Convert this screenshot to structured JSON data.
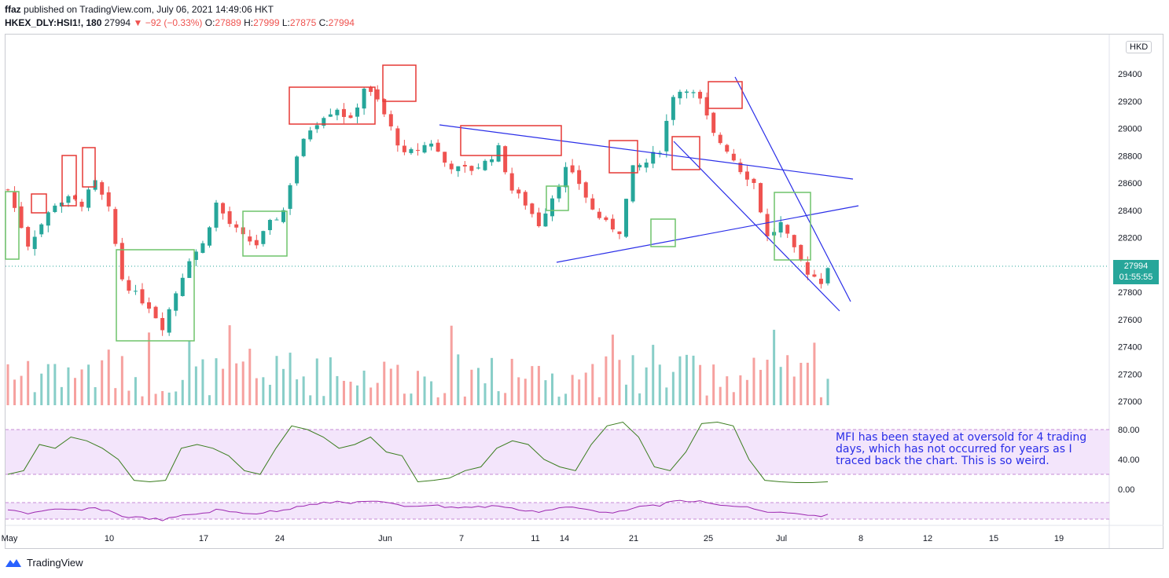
{
  "header": {
    "published_by": "ffaz",
    "published_text": "published on TradingView.com, July 06, 2021 14:49:06 HKT",
    "symbol": "HKEX_DLY:HSI1!, 180",
    "last": "27994",
    "change": "−92 (−0.33%)",
    "o_label": "O:",
    "o_value": "27889",
    "h_label": "H:",
    "h_value": "27999",
    "l_label": "L:",
    "l_value": "27875",
    "c_label": "C:",
    "c_value": "27994"
  },
  "currency": "HKD",
  "price_tag": {
    "price": "27994",
    "countdown": "01:55:55"
  },
  "annotation": "MFI has been stayed at oversold for 4 trading days, which has not occurred for years as I traced back the chart. This is so weird.",
  "footer": {
    "brand": "TradingView"
  },
  "colors": {
    "up": "#26a69a",
    "down": "#ef5350",
    "trendline": "#2a2ee8",
    "mfi_line": "#3a7d1e",
    "mfi_band": "#f3e5fb",
    "osc_line": "#9c27b0"
  },
  "chart_data": [
    {
      "type": "candlestick",
      "x_ticks": [
        "May",
        "10",
        "17",
        "24",
        "Jun",
        "7",
        "11",
        "14",
        "21",
        "25",
        "Jul",
        "8",
        "12",
        "15",
        "19"
      ],
      "y_ticks": [
        29400,
        29200,
        29000,
        28800,
        28600,
        28400,
        28200,
        27800,
        27600,
        27400,
        27200,
        27000
      ],
      "ylim": [
        27000,
        29600
      ],
      "last_price": 27994,
      "path_points": [
        [
          0,
          28550
        ],
        [
          3,
          28150
        ],
        [
          5,
          28300
        ],
        [
          7,
          28450
        ],
        [
          9,
          28480
        ],
        [
          11,
          28450
        ],
        [
          13,
          28600
        ],
        [
          15,
          28400
        ],
        [
          17,
          27900
        ],
        [
          19,
          27780
        ],
        [
          21,
          27700
        ],
        [
          23,
          27550
        ],
        [
          25,
          27800
        ],
        [
          27,
          28050
        ],
        [
          29,
          28150
        ],
        [
          31,
          28450
        ],
        [
          33,
          28300
        ],
        [
          35,
          28200
        ],
        [
          37,
          28150
        ],
        [
          39,
          28300
        ],
        [
          41,
          28400
        ],
        [
          43,
          28800
        ],
        [
          45,
          29000
        ],
        [
          47,
          29100
        ],
        [
          49,
          29150
        ],
        [
          51,
          29050
        ],
        [
          53,
          29300
        ],
        [
          55,
          29200
        ],
        [
          57,
          29000
        ],
        [
          59,
          28800
        ],
        [
          61,
          28850
        ],
        [
          63,
          28900
        ],
        [
          65,
          28750
        ],
        [
          67,
          28700
        ],
        [
          69,
          28700
        ],
        [
          71,
          28750
        ],
        [
          73,
          28850
        ],
        [
          75,
          28550
        ],
        [
          77,
          28450
        ],
        [
          79,
          28300
        ],
        [
          81,
          28500
        ],
        [
          83,
          28700
        ],
        [
          85,
          28600
        ],
        [
          87,
          28400
        ],
        [
          89,
          28300
        ],
        [
          91,
          28250
        ],
        [
          93,
          28700
        ],
        [
          95,
          28750
        ],
        [
          97,
          28850
        ],
        [
          99,
          29250
        ],
        [
          101,
          29300
        ],
        [
          103,
          29200
        ],
        [
          105,
          28950
        ],
        [
          107,
          28850
        ],
        [
          109,
          28700
        ],
        [
          111,
          28600
        ],
        [
          113,
          28200
        ],
        [
          115,
          28300
        ],
        [
          117,
          28100
        ],
        [
          119,
          27950
        ],
        [
          121,
          27880
        ],
        [
          122,
          27994
        ]
      ],
      "n_bars": 123
    },
    {
      "type": "line",
      "name": "MFI",
      "y_ticks": [
        80.0,
        40.0,
        0.0
      ],
      "ylim": [
        -8,
        100
      ],
      "upper_band": 80,
      "lower_band": 20,
      "values": [
        20,
        25,
        60,
        55,
        70,
        65,
        55,
        40,
        12,
        10,
        12,
        55,
        60,
        55,
        45,
        25,
        20,
        55,
        85,
        80,
        70,
        55,
        60,
        70,
        50,
        45,
        10,
        12,
        15,
        25,
        30,
        55,
        65,
        60,
        40,
        30,
        25,
        60,
        85,
        90,
        70,
        30,
        25,
        50,
        88,
        90,
        85,
        40,
        12,
        10,
        9,
        9,
        10
      ]
    }
  ]
}
